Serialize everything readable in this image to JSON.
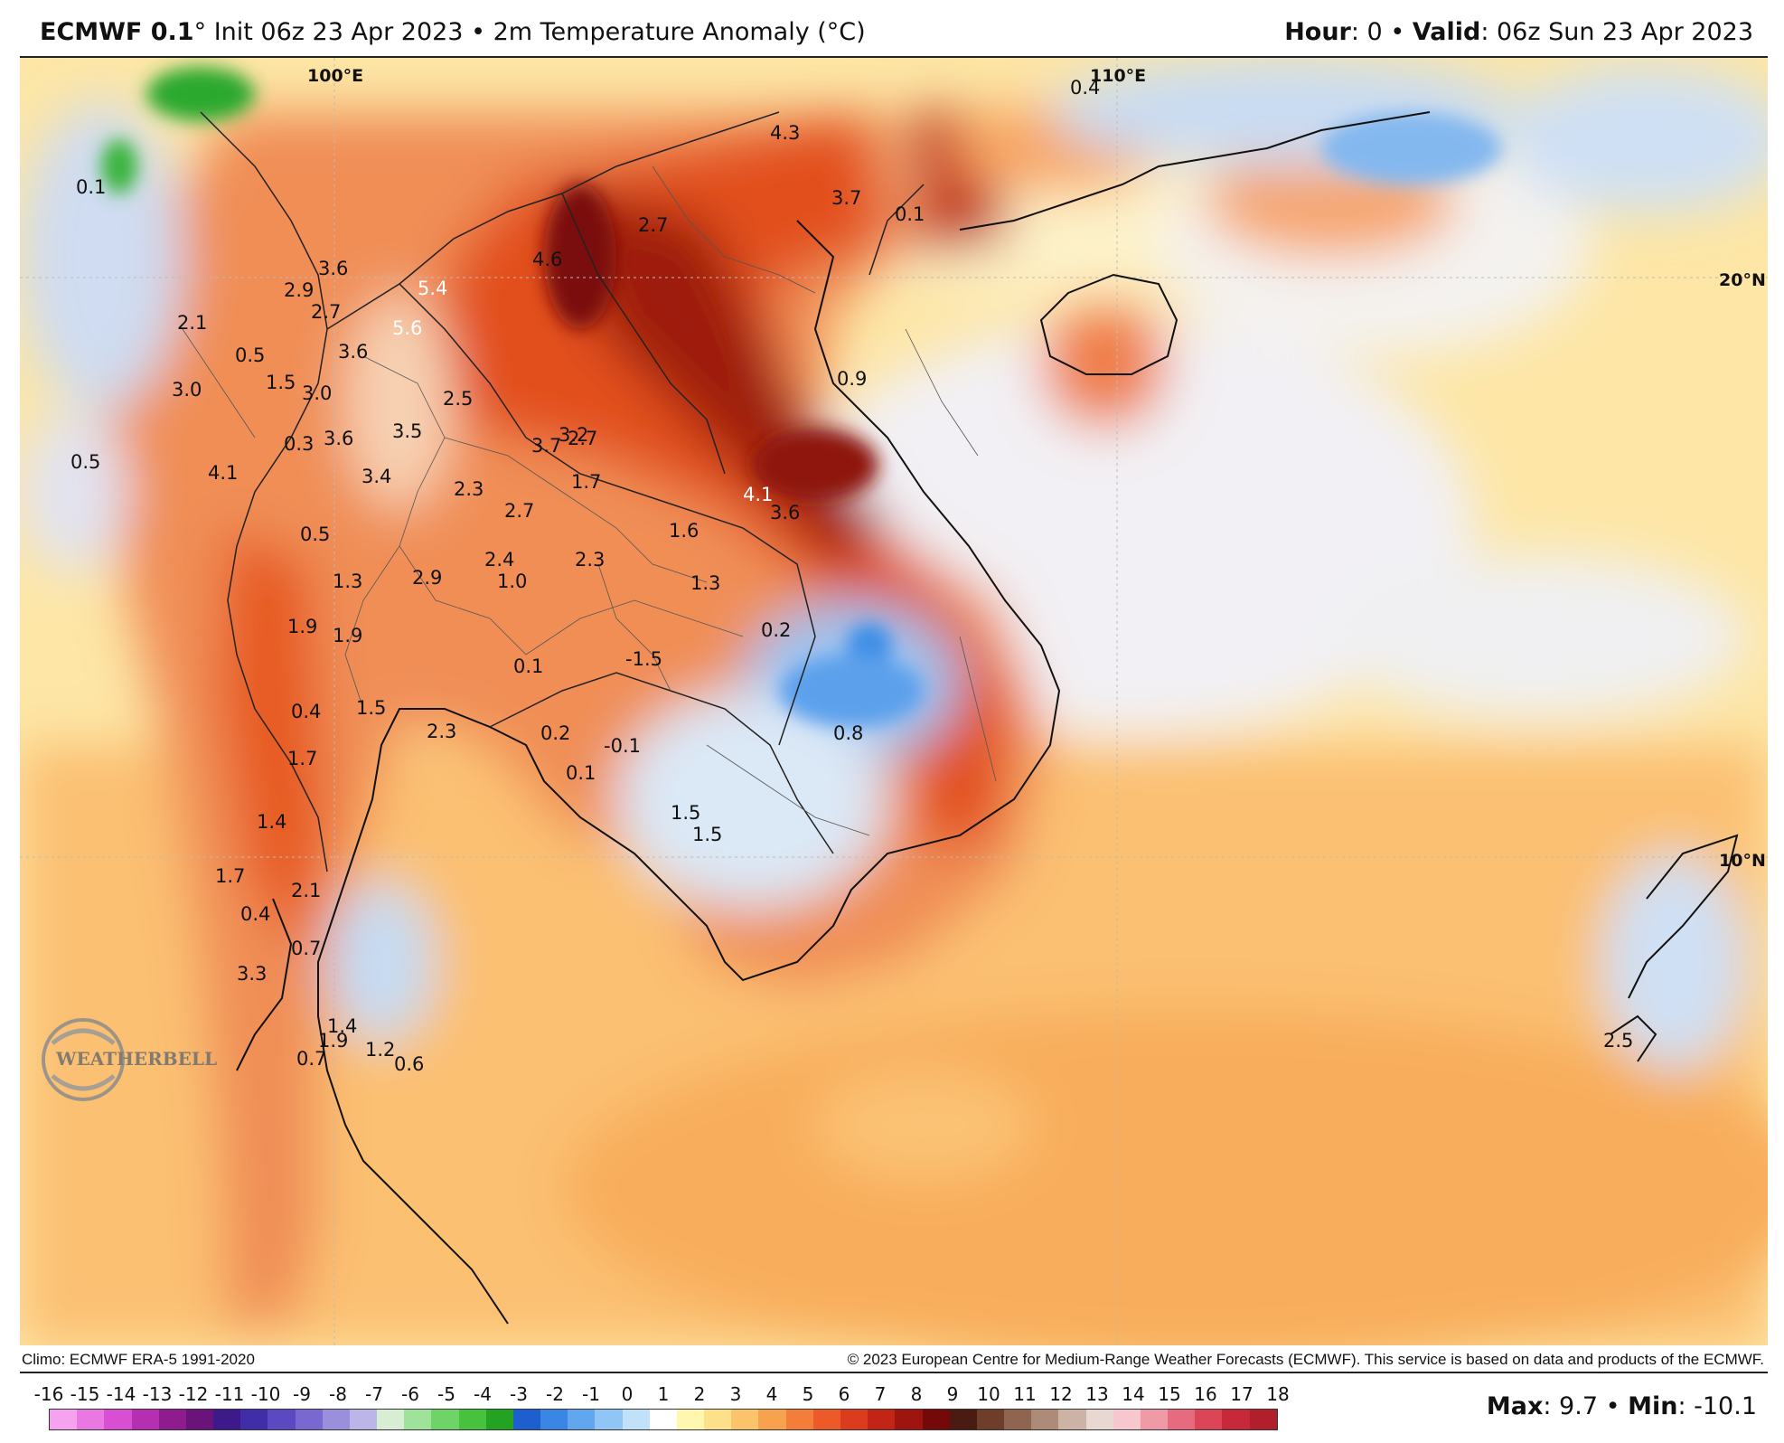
{
  "header": {
    "model": "ECMWF 0.1",
    "deg": "°",
    "subtitle": "Init 06z 23 Apr 2023 • 2m Temperature Anomaly (°C)",
    "hour_label": "Hour",
    "hour_value": ": 0 • ",
    "valid_label": "Valid",
    "valid_value": ": 06z Sun 23 Apr 2023"
  },
  "map": {
    "gridlabels": [
      {
        "id": "lon-100",
        "text": "100°E"
      },
      {
        "id": "lon-110",
        "text": "110°E"
      },
      {
        "id": "lat-20",
        "text": "20°N"
      },
      {
        "id": "lat-10",
        "text": "10°N"
      }
    ],
    "point_values": [
      {
        "text": "0.1"
      },
      {
        "text": "0.4"
      },
      {
        "text": "4.3"
      },
      {
        "text": "3.7"
      },
      {
        "text": "0.1"
      },
      {
        "text": "2.7"
      },
      {
        "text": "4.6"
      },
      {
        "text": "3.6"
      },
      {
        "text": "2.9"
      },
      {
        "text": "5.4",
        "white": true
      },
      {
        "text": "2.7"
      },
      {
        "text": "2.1"
      },
      {
        "text": "5.6",
        "white": true
      },
      {
        "text": "3.6"
      },
      {
        "text": "0.5"
      },
      {
        "text": "1.5"
      },
      {
        "text": "3.0"
      },
      {
        "text": "3.0"
      },
      {
        "text": "3.6"
      },
      {
        "text": "2.7"
      },
      {
        "text": "0.9"
      },
      {
        "text": "2.5"
      },
      {
        "text": "3.5"
      },
      {
        "text": "3.7"
      },
      {
        "text": "3.2"
      },
      {
        "text": "0.3"
      },
      {
        "text": "0.5"
      },
      {
        "text": "3.4"
      },
      {
        "text": "1.7"
      },
      {
        "text": "2.3"
      },
      {
        "text": "4.1"
      },
      {
        "text": "4.1",
        "white": true
      },
      {
        "text": "3.6"
      },
      {
        "text": "2.7"
      },
      {
        "text": "1.6"
      },
      {
        "text": "0.5"
      },
      {
        "text": "2.4"
      },
      {
        "text": "2.3"
      },
      {
        "text": "1.3"
      },
      {
        "text": "2.9"
      },
      {
        "text": "1.0"
      },
      {
        "text": "1.3"
      },
      {
        "text": "0.2"
      },
      {
        "text": "1.9"
      },
      {
        "text": "1.9"
      },
      {
        "text": "-1.5"
      },
      {
        "text": "0.1"
      },
      {
        "text": "0.4"
      },
      {
        "text": "1.5"
      },
      {
        "text": "2.3"
      },
      {
        "text": "0.2"
      },
      {
        "text": "-0.1"
      },
      {
        "text": "0.8"
      },
      {
        "text": "1.7"
      },
      {
        "text": "0.1"
      },
      {
        "text": "1.4"
      },
      {
        "text": "1.5"
      },
      {
        "text": "1.5"
      },
      {
        "text": "1.7"
      },
      {
        "text": "2.1"
      },
      {
        "text": "0.4"
      },
      {
        "text": "0.7"
      },
      {
        "text": "3.3"
      },
      {
        "text": "1.4"
      },
      {
        "text": "1.9"
      },
      {
        "text": "1.2"
      },
      {
        "text": "0.7"
      },
      {
        "text": "0.6"
      },
      {
        "text": "2.5"
      }
    ]
  },
  "logo": {
    "text": "WEATHERBELL"
  },
  "footer": {
    "climo": "Climo: ECMWF ERA-5 1991-2020",
    "copyright": "© 2023 European Centre for Medium-Range Weather Forecasts (ECMWF). This service is based on data and products of the ECMWF."
  },
  "colorbar": {
    "ticks": [
      "-16",
      "-15",
      "-14",
      "-13",
      "-12",
      "-11",
      "-10",
      "-9",
      "-8",
      "-7",
      "-6",
      "-5",
      "-4",
      "-3",
      "-2",
      "-1",
      "0",
      "1",
      "2",
      "3",
      "4",
      "5",
      "6",
      "7",
      "8",
      "9",
      "10",
      "11",
      "12",
      "13",
      "14",
      "15",
      "16",
      "17",
      "18"
    ],
    "colors": [
      "#f5a3ee",
      "#ea78e3",
      "#d94fd4",
      "#b52fb3",
      "#8e1c8f",
      "#6a137a",
      "#3c1a8a",
      "#3f2ea8",
      "#5a49c0",
      "#7a68d1",
      "#9a8fdd",
      "#bcb6e8",
      "#d7eed5",
      "#9fe29a",
      "#6fd467",
      "#46c23c",
      "#24a322",
      "#1d5fcf",
      "#3a86e5",
      "#62a6ef",
      "#8fc6f5",
      "#c0e1f8",
      "#ffffff",
      "#fff6b0",
      "#fde18a",
      "#fcc46a",
      "#f9a24e",
      "#f47d3a",
      "#ec5a2a",
      "#dc3c1e",
      "#c22516",
      "#9e140f",
      "#74090a",
      "#4a1b12",
      "#6e3e2b",
      "#8f6450",
      "#ae8a78",
      "#cdb3a6",
      "#e9d8d1",
      "#f7c7cf",
      "#f09aa8",
      "#e66b7e",
      "#db4557",
      "#c7283a",
      "#b01f2a"
    ],
    "max_label": "Max",
    "max_value": ": 9.7 • ",
    "min_label": "Min",
    "min_value": ": -10.1"
  }
}
